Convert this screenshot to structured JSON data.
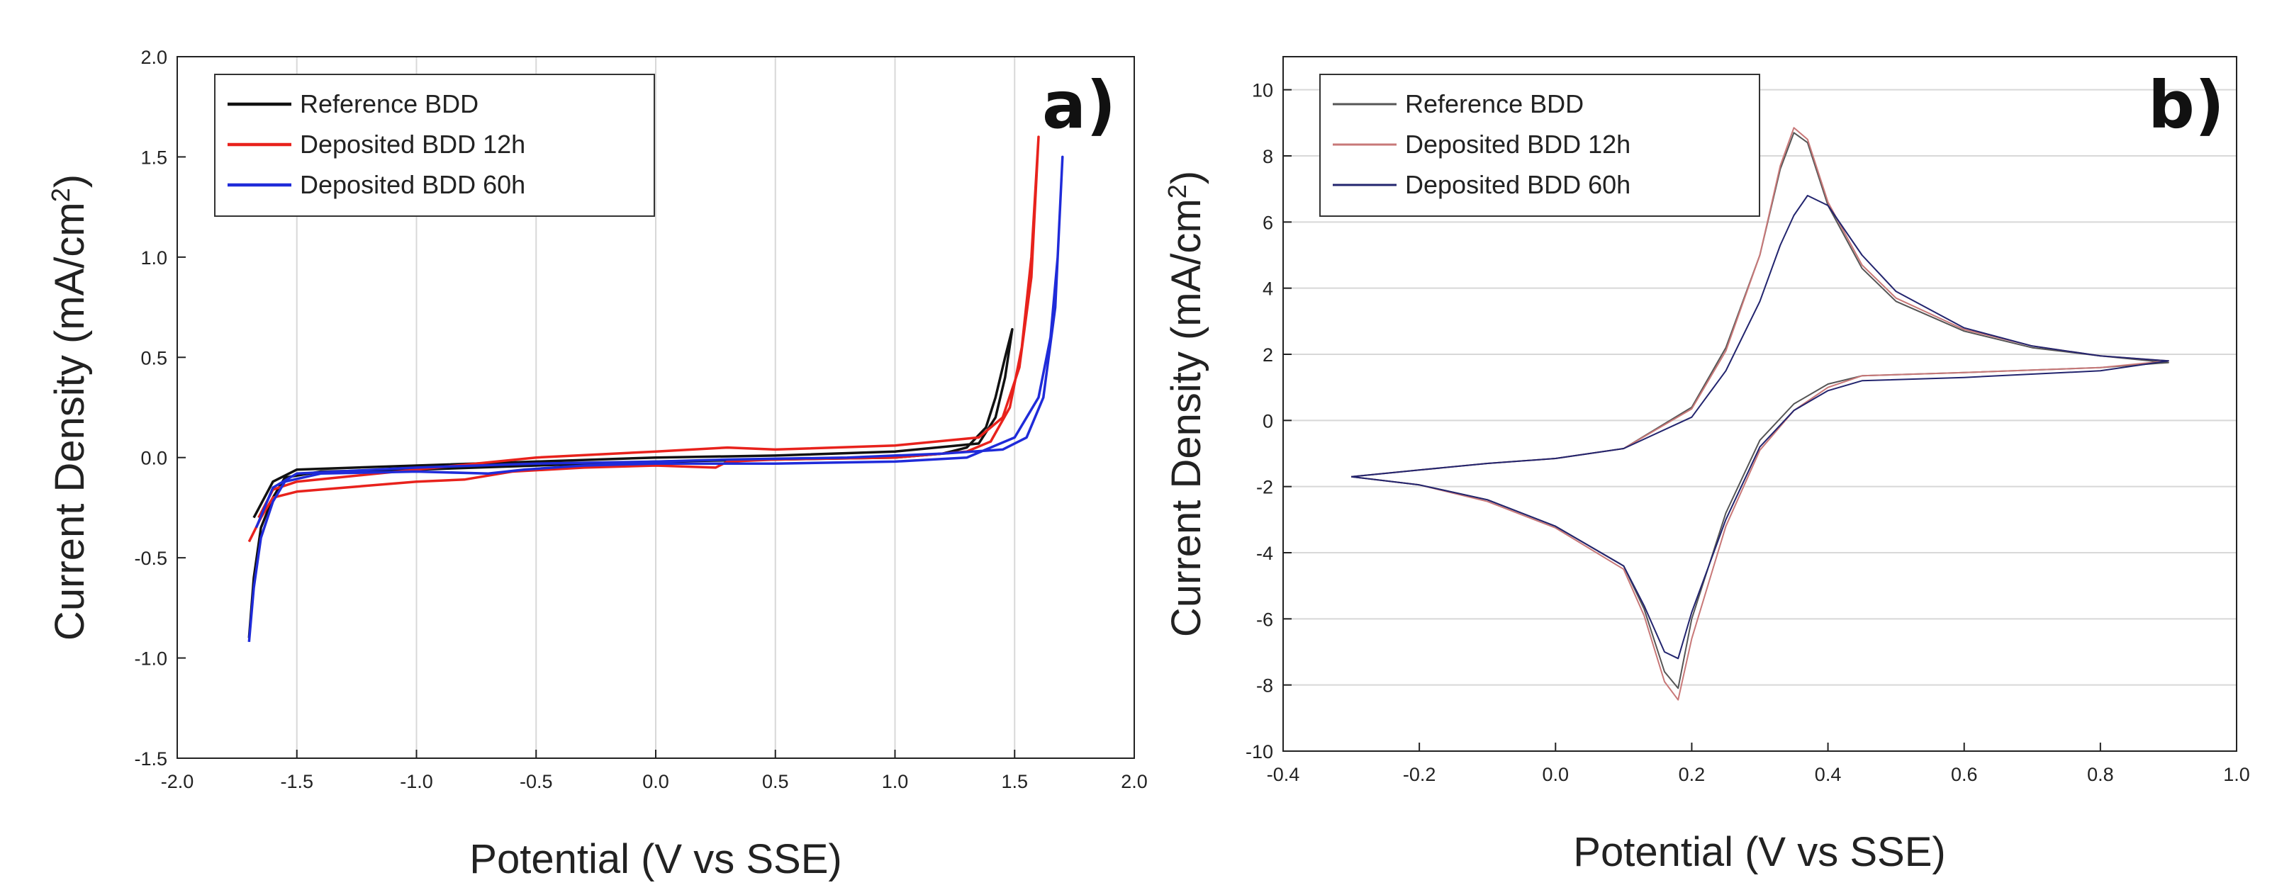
{
  "chart_data": [
    {
      "type": "line",
      "panel_label": "a)",
      "xlabel": "Potential (V vs SSE)",
      "ylabel": "Current Density (mA/cm",
      "ylabel_sup": "2",
      "ylabel_close": ")",
      "xlim": [
        -2.0,
        2.0
      ],
      "ylim": [
        -1.5,
        2.0
      ],
      "xticks": [
        -2.0,
        -1.5,
        -1.0,
        -0.5,
        0.0,
        0.5,
        1.0,
        1.5,
        2.0
      ],
      "yticks": [
        -1.5,
        -1.0,
        -0.5,
        0.0,
        0.5,
        1.0,
        1.5,
        2.0
      ],
      "xtick_labels": [
        "-2.0",
        "-1.5",
        "-1.0",
        "-0.5",
        "0.0",
        "0.5",
        "1.0",
        "1.5",
        "2.0"
      ],
      "ytick_labels": [
        "-1.5",
        "-1.0",
        "-0.5",
        "0.0",
        "0.5",
        "1.0",
        "1.5",
        "2.0"
      ],
      "grid": "vertical",
      "legend_position": "top-left",
      "series": [
        {
          "name": "Reference BDD",
          "color": "#111111",
          "points": [
            [
              -1.7,
              -0.9
            ],
            [
              -1.68,
              -0.6
            ],
            [
              -1.65,
              -0.35
            ],
            [
              -1.6,
              -0.2
            ],
            [
              -1.55,
              -0.1
            ],
            [
              -1.4,
              -0.07
            ],
            [
              -1.0,
              -0.06
            ],
            [
              -0.5,
              -0.04
            ],
            [
              0.0,
              -0.02
            ],
            [
              0.5,
              -0.01
            ],
            [
              1.0,
              0.0
            ],
            [
              1.2,
              0.02
            ],
            [
              1.3,
              0.05
            ],
            [
              1.38,
              0.15
            ],
            [
              1.42,
              0.3
            ],
            [
              1.46,
              0.5
            ],
            [
              1.49,
              0.64
            ],
            [
              1.46,
              0.4
            ],
            [
              1.42,
              0.2
            ],
            [
              1.35,
              0.07
            ],
            [
              1.0,
              0.03
            ],
            [
              0.5,
              0.01
            ],
            [
              0.0,
              0.0
            ],
            [
              -0.5,
              -0.02
            ],
            [
              -1.0,
              -0.04
            ],
            [
              -1.5,
              -0.06
            ],
            [
              -1.6,
              -0.12
            ],
            [
              -1.68,
              -0.3
            ]
          ]
        },
        {
          "name": "Deposited BDD 12h",
          "color": "#e8221c",
          "points": [
            [
              -1.7,
              -0.42
            ],
            [
              -1.65,
              -0.3
            ],
            [
              -1.6,
              -0.2
            ],
            [
              -1.5,
              -0.17
            ],
            [
              -1.3,
              -0.15
            ],
            [
              -1.0,
              -0.12
            ],
            [
              -0.8,
              -0.11
            ],
            [
              -0.6,
              -0.07
            ],
            [
              -0.3,
              -0.05
            ],
            [
              0.0,
              -0.04
            ],
            [
              0.25,
              -0.05
            ],
            [
              0.3,
              -0.02
            ],
            [
              0.5,
              -0.01
            ],
            [
              1.0,
              0.0
            ],
            [
              1.3,
              0.03
            ],
            [
              1.4,
              0.08
            ],
            [
              1.48,
              0.25
            ],
            [
              1.53,
              0.55
            ],
            [
              1.57,
              1.0
            ],
            [
              1.6,
              1.6
            ],
            [
              1.57,
              0.9
            ],
            [
              1.52,
              0.45
            ],
            [
              1.45,
              0.2
            ],
            [
              1.35,
              0.1
            ],
            [
              1.0,
              0.06
            ],
            [
              0.5,
              0.04
            ],
            [
              0.3,
              0.05
            ],
            [
              0.0,
              0.03
            ],
            [
              -0.5,
              0.0
            ],
            [
              -1.0,
              -0.06
            ],
            [
              -1.5,
              -0.12
            ],
            [
              -1.6,
              -0.16
            ],
            [
              -1.66,
              -0.3
            ]
          ]
        },
        {
          "name": "Deposited BDD 60h",
          "color": "#1f2bd9",
          "points": [
            [
              -1.7,
              -0.92
            ],
            [
              -1.68,
              -0.65
            ],
            [
              -1.65,
              -0.4
            ],
            [
              -1.6,
              -0.22
            ],
            [
              -1.55,
              -0.12
            ],
            [
              -1.4,
              -0.08
            ],
            [
              -1.0,
              -0.07
            ],
            [
              -0.7,
              -0.08
            ],
            [
              -0.55,
              -0.06
            ],
            [
              -0.3,
              -0.04
            ],
            [
              0.0,
              -0.03
            ],
            [
              0.5,
              -0.03
            ],
            [
              1.0,
              -0.02
            ],
            [
              1.3,
              0.0
            ],
            [
              1.5,
              0.1
            ],
            [
              1.6,
              0.3
            ],
            [
              1.65,
              0.6
            ],
            [
              1.68,
              1.0
            ],
            [
              1.7,
              1.5
            ],
            [
              1.67,
              0.75
            ],
            [
              1.62,
              0.3
            ],
            [
              1.55,
              0.1
            ],
            [
              1.45,
              0.04
            ],
            [
              1.2,
              0.02
            ],
            [
              0.8,
              0.0
            ],
            [
              0.3,
              -0.01
            ],
            [
              0.0,
              -0.02
            ],
            [
              -0.5,
              -0.03
            ],
            [
              -1.0,
              -0.05
            ],
            [
              -1.5,
              -0.08
            ],
            [
              -1.6,
              -0.15
            ],
            [
              -1.67,
              -0.35
            ]
          ]
        }
      ]
    },
    {
      "type": "line",
      "panel_label": "b)",
      "xlabel": "Potential (V vs SSE)",
      "ylabel": "Current Density (mA/cm",
      "ylabel_sup": "2",
      "ylabel_close": ")",
      "xlim": [
        -0.4,
        1.0
      ],
      "ylim": [
        -10,
        11
      ],
      "xticks": [
        -0.4,
        -0.2,
        0.0,
        0.2,
        0.4,
        0.6,
        0.8,
        1.0
      ],
      "yticks": [
        -10,
        -8,
        -6,
        -4,
        -2,
        0,
        2,
        4,
        6,
        8,
        10
      ],
      "xtick_labels": [
        "-0.4",
        "-0.2",
        "0.0",
        "0.2",
        "0.4",
        "0.6",
        "0.8",
        "1.0"
      ],
      "ytick_labels": [
        "-10",
        "-8",
        "-6",
        "-4",
        "-2",
        "0",
        "2",
        "4",
        "6",
        "8",
        "10"
      ],
      "grid": "horizontal",
      "legend_position": "top-left",
      "series": [
        {
          "name": "Reference BDD",
          "color": "#555555",
          "points": [
            [
              -0.3,
              -1.7
            ],
            [
              -0.2,
              -1.5
            ],
            [
              -0.1,
              -1.3
            ],
            [
              0.0,
              -1.15
            ],
            [
              0.1,
              -0.85
            ],
            [
              0.2,
              0.4
            ],
            [
              0.25,
              2.2
            ],
            [
              0.3,
              5.0
            ],
            [
              0.33,
              7.6
            ],
            [
              0.35,
              8.7
            ],
            [
              0.37,
              8.4
            ],
            [
              0.4,
              6.5
            ],
            [
              0.45,
              4.6
            ],
            [
              0.5,
              3.6
            ],
            [
              0.6,
              2.7
            ],
            [
              0.7,
              2.2
            ],
            [
              0.8,
              1.95
            ],
            [
              0.9,
              1.75
            ],
            [
              0.8,
              1.6
            ],
            [
              0.6,
              1.45
            ],
            [
              0.45,
              1.35
            ],
            [
              0.4,
              1.1
            ],
            [
              0.35,
              0.5
            ],
            [
              0.3,
              -0.6
            ],
            [
              0.25,
              -2.8
            ],
            [
              0.2,
              -6.0
            ],
            [
              0.18,
              -8.1
            ],
            [
              0.16,
              -7.6
            ],
            [
              0.13,
              -5.7
            ],
            [
              0.1,
              -4.4
            ],
            [
              0.0,
              -3.2
            ],
            [
              -0.1,
              -2.4
            ],
            [
              -0.2,
              -1.95
            ],
            [
              -0.3,
              -1.7
            ]
          ]
        },
        {
          "name": "Deposited BDD 12h",
          "color": "#c87878",
          "points": [
            [
              -0.3,
              -1.7
            ],
            [
              -0.2,
              -1.5
            ],
            [
              -0.1,
              -1.3
            ],
            [
              0.0,
              -1.15
            ],
            [
              0.1,
              -0.85
            ],
            [
              0.2,
              0.35
            ],
            [
              0.25,
              2.1
            ],
            [
              0.3,
              5.0
            ],
            [
              0.33,
              7.7
            ],
            [
              0.35,
              8.85
            ],
            [
              0.37,
              8.5
            ],
            [
              0.4,
              6.6
            ],
            [
              0.45,
              4.7
            ],
            [
              0.5,
              3.7
            ],
            [
              0.6,
              2.75
            ],
            [
              0.7,
              2.25
            ],
            [
              0.8,
              1.95
            ],
            [
              0.9,
              1.8
            ],
            [
              0.8,
              1.6
            ],
            [
              0.6,
              1.45
            ],
            [
              0.45,
              1.35
            ],
            [
              0.4,
              1.0
            ],
            [
              0.35,
              0.3
            ],
            [
              0.3,
              -0.9
            ],
            [
              0.25,
              -3.2
            ],
            [
              0.2,
              -6.6
            ],
            [
              0.18,
              -8.45
            ],
            [
              0.16,
              -7.9
            ],
            [
              0.13,
              -5.9
            ],
            [
              0.1,
              -4.5
            ],
            [
              0.0,
              -3.25
            ],
            [
              -0.1,
              -2.45
            ],
            [
              -0.2,
              -1.95
            ],
            [
              -0.3,
              -1.7
            ]
          ]
        },
        {
          "name": "Deposited BDD 60h",
          "color": "#22246e",
          "points": [
            [
              -0.3,
              -1.7
            ],
            [
              -0.2,
              -1.5
            ],
            [
              -0.1,
              -1.3
            ],
            [
              0.0,
              -1.15
            ],
            [
              0.1,
              -0.85
            ],
            [
              0.2,
              0.1
            ],
            [
              0.25,
              1.5
            ],
            [
              0.3,
              3.6
            ],
            [
              0.33,
              5.3
            ],
            [
              0.35,
              6.2
            ],
            [
              0.37,
              6.8
            ],
            [
              0.4,
              6.5
            ],
            [
              0.45,
              5.0
            ],
            [
              0.5,
              3.9
            ],
            [
              0.6,
              2.8
            ],
            [
              0.7,
              2.25
            ],
            [
              0.8,
              1.95
            ],
            [
              0.9,
              1.8
            ],
            [
              0.8,
              1.5
            ],
            [
              0.6,
              1.3
            ],
            [
              0.45,
              1.2
            ],
            [
              0.4,
              0.9
            ],
            [
              0.35,
              0.3
            ],
            [
              0.3,
              -0.8
            ],
            [
              0.25,
              -3.0
            ],
            [
              0.2,
              -5.8
            ],
            [
              0.18,
              -7.2
            ],
            [
              0.16,
              -7.0
            ],
            [
              0.13,
              -5.6
            ],
            [
              0.1,
              -4.4
            ],
            [
              0.0,
              -3.2
            ],
            [
              -0.1,
              -2.4
            ],
            [
              -0.2,
              -1.95
            ],
            [
              -0.3,
              -1.7
            ]
          ]
        }
      ]
    }
  ]
}
